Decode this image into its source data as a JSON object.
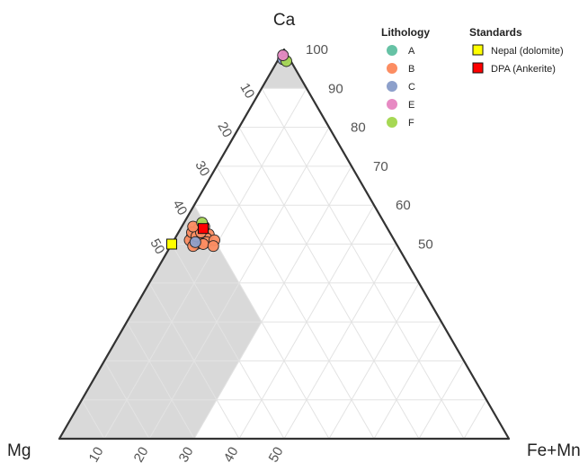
{
  "chart_data": {
    "type": "scatter",
    "subtype": "ternary",
    "vertices": {
      "top": "Ca",
      "left": "Mg",
      "right": "Fe+Mn"
    },
    "ticks": {
      "ca_side": [
        "10",
        "20",
        "30",
        "40",
        "50"
      ],
      "right_side": [
        "100",
        "90",
        "80",
        "70",
        "60",
        "50"
      ],
      "bottom": [
        "10",
        "20",
        "30",
        "40",
        "50"
      ]
    },
    "grid": true,
    "shaded_regions": [
      {
        "description": "Ca >= 90",
        "ca_min": 90
      },
      {
        "description": "dolomite field: Mg >= 40, Fe+Mn <= 30",
        "mg_min": 40,
        "fe_max": 30
      }
    ],
    "colors": {
      "A": "#66c2a5",
      "B": "#fc8d62",
      "C": "#8da0cb",
      "E": "#e78ac3",
      "F": "#a6d854",
      "nepal": "#ffff00",
      "dpa": "#ff0000",
      "shade": "#d9d9d9",
      "grid": "#e3e3e3",
      "frame": "#333333"
    },
    "legends": [
      {
        "title": "Lithology",
        "placement": "top-right",
        "items": [
          {
            "label": "A",
            "key": "A"
          },
          {
            "label": "B",
            "key": "B"
          },
          {
            "label": "C",
            "key": "C"
          },
          {
            "label": "E",
            "key": "E"
          },
          {
            "label": "F",
            "key": "F"
          }
        ]
      },
      {
        "title": "Standards",
        "placement": "top-right",
        "items": [
          {
            "label": "Nepal (dolomite)",
            "key": "nepal"
          },
          {
            "label": "DPA (Ankerite)",
            "key": "dpa"
          }
        ]
      }
    ],
    "series": [
      {
        "name": "C",
        "marker": "circle",
        "points": [
          [
            97.5,
            1.5,
            1.0
          ],
          [
            50.5,
            44.5,
            5.0
          ]
        ]
      },
      {
        "name": "E",
        "marker": "circle",
        "points": [
          [
            98.5,
            1.0,
            0.5
          ]
        ]
      },
      {
        "name": "F",
        "marker": "circle",
        "points": [
          [
            97.0,
            1.0,
            2.0
          ],
          [
            55.5,
            40.5,
            4.0
          ]
        ]
      },
      {
        "name": "B",
        "marker": "circle",
        "points": [
          [
            52.0,
            44.5,
            3.5
          ],
          [
            51.5,
            44.0,
            4.5
          ],
          [
            53.0,
            43.0,
            4.0
          ],
          [
            52.5,
            42.5,
            5.0
          ],
          [
            51.0,
            43.0,
            6.0
          ],
          [
            52.0,
            41.5,
            6.5
          ],
          [
            53.5,
            41.0,
            5.5
          ],
          [
            54.0,
            42.0,
            4.0
          ],
          [
            51.0,
            45.5,
            3.5
          ],
          [
            50.0,
            44.5,
            5.5
          ],
          [
            52.5,
            40.5,
            7.0
          ],
          [
            51.5,
            41.5,
            7.0
          ],
          [
            53.0,
            44.0,
            3.0
          ],
          [
            50.5,
            42.0,
            7.5
          ],
          [
            49.5,
            45.5,
            5.0
          ],
          [
            52.0,
            43.5,
            4.5
          ],
          [
            54.5,
            40.5,
            5.0
          ],
          [
            51.0,
            40.0,
            9.0
          ],
          [
            50.0,
            43.0,
            7.0
          ],
          [
            53.0,
            42.0,
            5.0
          ],
          [
            49.5,
            41.0,
            9.5
          ],
          [
            54.5,
            43.0,
            2.5
          ]
        ]
      },
      {
        "name": "Nepal (dolomite)",
        "marker": "square",
        "points": [
          [
            50.0,
            50.0,
            0.0
          ]
        ]
      },
      {
        "name": "DPA (Ankerite)",
        "marker": "square",
        "points": [
          [
            54.0,
            41.0,
            5.0
          ]
        ]
      }
    ]
  }
}
